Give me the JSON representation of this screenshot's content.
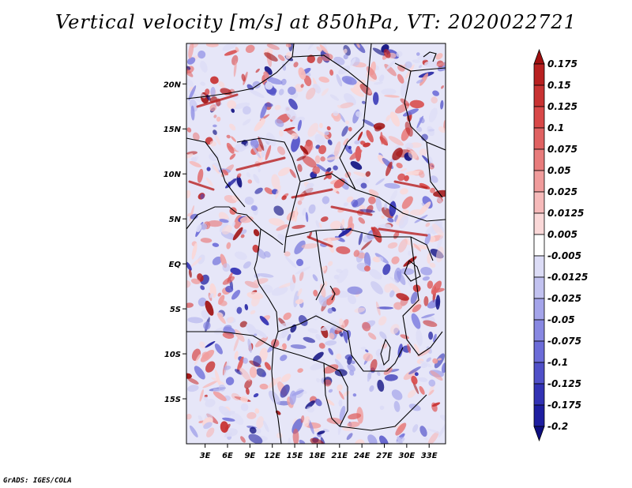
{
  "title": "Vertical velocity [m/s] at 850hPa, VT: 2020022721",
  "footer": "GrADS: IGES/COLA",
  "map": {
    "variable": "Vertical velocity",
    "units": "m/s",
    "level": "850hPa",
    "valid_time": "2020022721",
    "lat_labels": [
      "20N",
      "15N",
      "10N",
      "5N",
      "EQ",
      "5S",
      "10S",
      "15S"
    ],
    "lon_labels": [
      "3E",
      "6E",
      "9E",
      "12E",
      "15E",
      "18E",
      "21E",
      "24E",
      "27E",
      "30E",
      "33E"
    ],
    "lat_values": [
      20,
      15,
      10,
      5,
      0,
      -5,
      -10,
      -15
    ],
    "lon_values": [
      3,
      6,
      9,
      12,
      15,
      18,
      21,
      24,
      27,
      30,
      33
    ],
    "lat_range": [
      -20,
      24.5
    ],
    "lon_range": [
      0.5,
      35.2
    ]
  },
  "colorbar": {
    "labels": [
      "0.175",
      "0.15",
      "0.125",
      "0.1",
      "0.075",
      "0.05",
      "0.025",
      "0.0125",
      "0.005",
      "-0.005",
      "-0.0125",
      "-0.025",
      "-0.05",
      "-0.075",
      "-0.1",
      "-0.125",
      "-0.175",
      "-0.2"
    ],
    "colors": [
      "#a01010",
      "#b82020",
      "#c83232",
      "#d84848",
      "#e06262",
      "#e87c7c",
      "#f09c9c",
      "#f6baba",
      "#fad8d8",
      "#ffffff",
      "#dcdcf6",
      "#c2c2f0",
      "#a4a4ea",
      "#8888e2",
      "#6c6cd8",
      "#5050c8",
      "#3232b4",
      "#1e1ea0",
      "#0e0e80"
    ]
  }
}
